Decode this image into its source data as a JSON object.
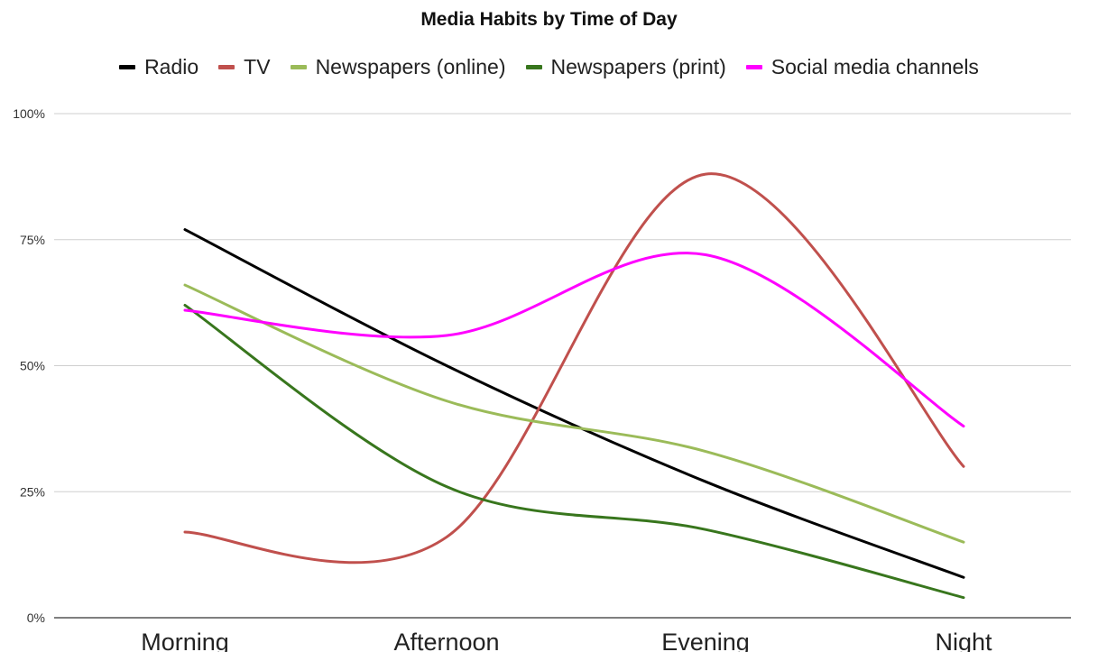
{
  "chart_data": {
    "type": "line",
    "title": "Media Habits by Time of Day",
    "categories": [
      "Morning",
      "Afternoon",
      "Evening",
      "Night"
    ],
    "ylim": [
      0,
      1
    ],
    "yticks": [
      {
        "value": 0,
        "label": "0%"
      },
      {
        "value": 0.25,
        "label": "25%"
      },
      {
        "value": 0.5,
        "label": "50%"
      },
      {
        "value": 0.75,
        "label": "75%"
      },
      {
        "value": 1,
        "label": "100%"
      }
    ],
    "grid": true,
    "legend": "top",
    "smooth": true,
    "series": [
      {
        "name": "Radio",
        "color": "#000000",
        "values": [
          0.77,
          0.5,
          0.27,
          0.08
        ]
      },
      {
        "name": "TV",
        "color": "#c0504d",
        "values": [
          0.17,
          0.16,
          0.88,
          0.3
        ]
      },
      {
        "name": "Newspapers (online)",
        "color": "#9bbb59",
        "values": [
          0.66,
          0.43,
          0.33,
          0.15
        ]
      },
      {
        "name": "Newspapers (print)",
        "color": "#38761d",
        "values": [
          0.62,
          0.26,
          0.175,
          0.04
        ]
      },
      {
        "name": "Social media channels",
        "color": "#ff00ff",
        "values": [
          0.61,
          0.56,
          0.72,
          0.38
        ]
      }
    ]
  }
}
